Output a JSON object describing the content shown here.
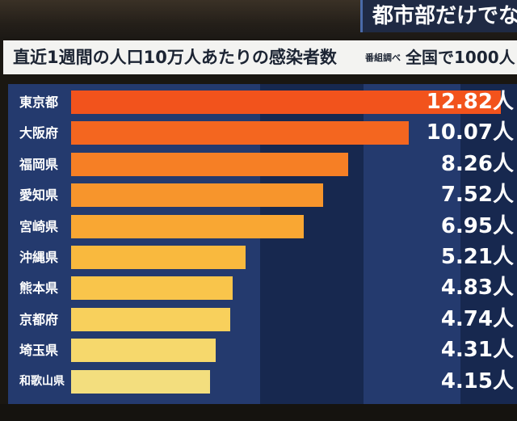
{
  "caption": "都市部だけでなく",
  "header": {
    "title": "直近1週間の人口10万人あたりの感染者数",
    "source": "番組調べ",
    "national": "全国で1000人"
  },
  "chart_data": {
    "type": "bar",
    "orientation": "horizontal",
    "categories": [
      "東京都",
      "大阪府",
      "福岡県",
      "愛知県",
      "宮崎県",
      "沖縄県",
      "熊本県",
      "京都府",
      "埼玉県",
      "和歌山県"
    ],
    "values": [
      12.82,
      10.07,
      8.26,
      7.52,
      6.95,
      5.21,
      4.83,
      4.74,
      4.31,
      4.15
    ],
    "value_labels": [
      "12.82人",
      "10.07人",
      "8.26人",
      "7.52人",
      "6.95人",
      "5.21人",
      "4.83人",
      "4.74人",
      "4.31人",
      "4.15人"
    ],
    "colors": [
      "#f2531c",
      "#f4661f",
      "#f67f25",
      "#f7952c",
      "#f9a733",
      "#f9b93e",
      "#f9c54b",
      "#f8d05c",
      "#f6d86c",
      "#f3de7e"
    ],
    "xlim": [
      0,
      12.82
    ],
    "grid": false
  },
  "colors": {
    "plot_background": "#243a6e",
    "band_dark": "#17284f",
    "title_bar": "#f3f3f1",
    "caption_box": "#1f2a44"
  }
}
